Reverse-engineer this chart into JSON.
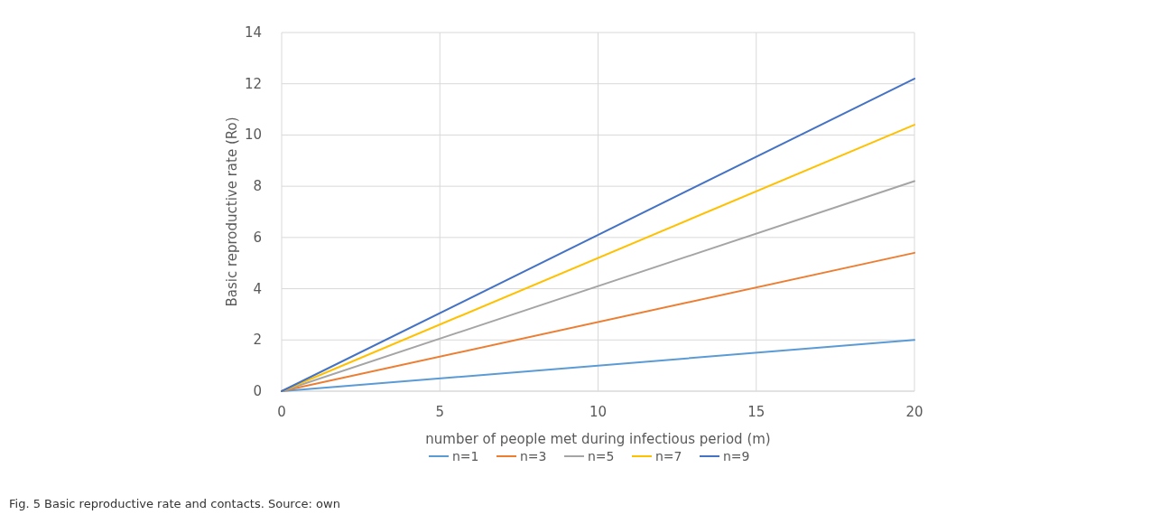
{
  "chart_data": {
    "type": "line",
    "xlabel": "number of people met during infectious period (m)",
    "ylabel": "Basic reproductive rate (Ro)",
    "x": [
      0,
      20
    ],
    "series": [
      {
        "name": "n=1",
        "color": "#5b9bd5",
        "values": [
          0,
          2.0
        ]
      },
      {
        "name": "n=3",
        "color": "#ed7d31",
        "values": [
          0,
          5.4
        ]
      },
      {
        "name": "n=5",
        "color": "#a5a5a5",
        "values": [
          0,
          8.2
        ]
      },
      {
        "name": "n=7",
        "color": "#ffc000",
        "values": [
          0,
          10.4
        ]
      },
      {
        "name": "n=9",
        "color": "#4472c4",
        "values": [
          0,
          12.2
        ]
      }
    ],
    "xlim": [
      0,
      20
    ],
    "xticks": [
      0,
      5,
      10,
      15,
      20
    ],
    "ylim": [
      0,
      14
    ],
    "yticks": [
      0,
      2,
      4,
      6,
      8,
      10,
      12,
      14
    ],
    "grid": true,
    "legend": "bottom",
    "marker": "none",
    "line_style": "solid",
    "annotations": [
      "Fig. 5 Basic reproductive rate and contacts. Source: own"
    ]
  }
}
